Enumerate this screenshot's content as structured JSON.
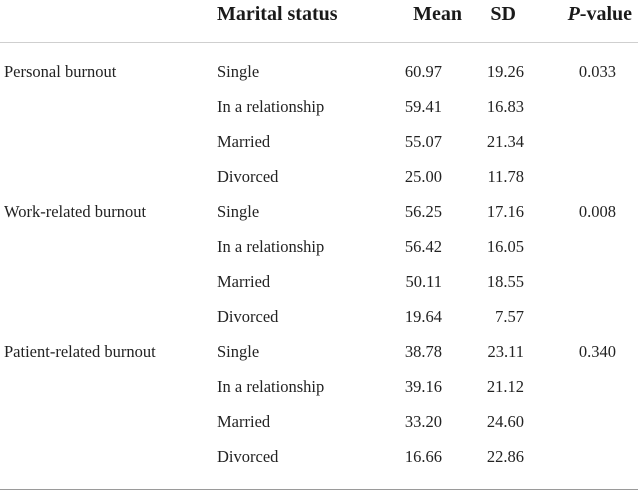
{
  "header": {
    "marital_status": "Marital status",
    "mean": "Mean",
    "sd": "SD",
    "p_italic": "P",
    "p_suffix": "-value"
  },
  "rows": [
    {
      "measure": "Personal burnout",
      "status": "Single",
      "mean": "60.97",
      "sd": "19.26",
      "p": "0.033"
    },
    {
      "measure": "",
      "status": "In a relationship",
      "mean": "59.41",
      "sd": "16.83",
      "p": ""
    },
    {
      "measure": "",
      "status": "Married",
      "mean": "55.07",
      "sd": "21.34",
      "p": ""
    },
    {
      "measure": "",
      "status": "Divorced",
      "mean": "25.00",
      "sd": "11.78",
      "p": ""
    },
    {
      "measure": "Work-related burnout",
      "status": "Single",
      "mean": "56.25",
      "sd": "17.16",
      "p": "0.008"
    },
    {
      "measure": "",
      "status": "In a relationship",
      "mean": "56.42",
      "sd": "16.05",
      "p": ""
    },
    {
      "measure": "",
      "status": "Married",
      "mean": "50.11",
      "sd": "18.55",
      "p": ""
    },
    {
      "measure": "",
      "status": "Divorced",
      "mean": "19.64",
      "sd": "7.57",
      "p": ""
    },
    {
      "measure": "Patient-related burnout",
      "status": "Single",
      "mean": "38.78",
      "sd": "23.11",
      "p": "0.340"
    },
    {
      "measure": "",
      "status": "In a relationship",
      "mean": "39.16",
      "sd": "21.12",
      "p": ""
    },
    {
      "measure": "",
      "status": "Married",
      "mean": "33.20",
      "sd": "24.60",
      "p": ""
    },
    {
      "measure": "",
      "status": "Divorced",
      "mean": "16.66",
      "sd": "22.86",
      "p": ""
    }
  ]
}
